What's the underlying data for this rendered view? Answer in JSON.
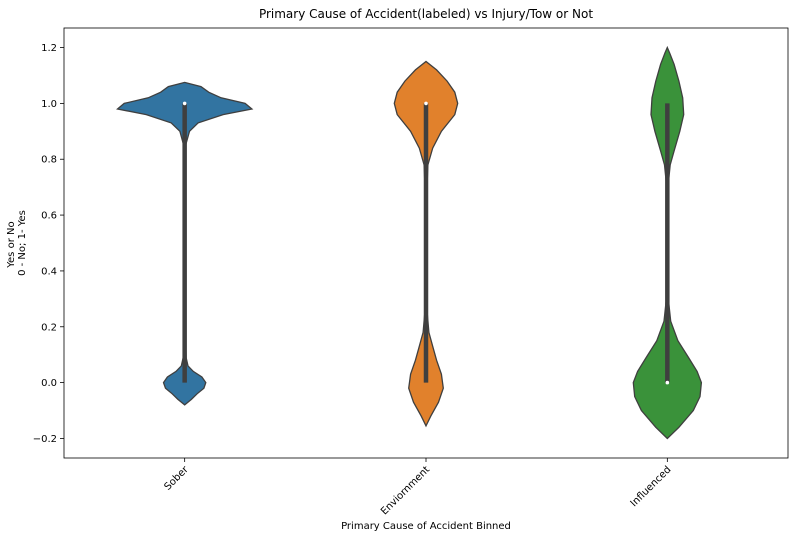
{
  "chart_data": {
    "type": "violin",
    "title": "Primary Cause of Accident(labeled) vs Injury/Tow or Not",
    "xlabel": "Primary Cause of Accident Binned",
    "ylabel_lines": [
      "Yes or No",
      "0 - No; 1- Yes"
    ],
    "ylim": [
      -0.27,
      1.27
    ],
    "yticks": [
      -0.2,
      0.0,
      0.2,
      0.4,
      0.6,
      0.8,
      1.0,
      1.2
    ],
    "ytick_labels": [
      "−0.2",
      "0.0",
      "0.2",
      "0.4",
      "0.6",
      "0.8",
      "1.0",
      "1.2"
    ],
    "categories": [
      "Sober",
      "Enviornment",
      "Influenced"
    ],
    "series": [
      {
        "category": "Sober",
        "color": "#3274a1",
        "range": [
          -0.08,
          1.075
        ],
        "whisker": [
          0.0,
          1.0
        ],
        "median": 1.0,
        "density": [
          [
            -0.08,
            0.0
          ],
          [
            -0.06,
            0.07
          ],
          [
            -0.04,
            0.13
          ],
          [
            -0.02,
            0.2
          ],
          [
            0.0,
            0.22
          ],
          [
            0.02,
            0.18
          ],
          [
            0.04,
            0.09
          ],
          [
            0.06,
            0.035
          ],
          [
            0.09,
            0.015
          ],
          [
            0.15,
            0.01
          ],
          [
            0.3,
            0.008
          ],
          [
            0.5,
            0.008
          ],
          [
            0.7,
            0.008
          ],
          [
            0.85,
            0.01
          ],
          [
            0.9,
            0.05
          ],
          [
            0.93,
            0.14
          ],
          [
            0.96,
            0.4
          ],
          [
            0.98,
            0.7
          ],
          [
            1.0,
            0.63
          ],
          [
            1.02,
            0.38
          ],
          [
            1.04,
            0.25
          ],
          [
            1.06,
            0.17
          ],
          [
            1.075,
            0.0
          ]
        ]
      },
      {
        "category": "Enviornment",
        "color": "#e1812c",
        "range": [
          -0.155,
          1.15
        ],
        "whisker": [
          0.0,
          1.0
        ],
        "median": 1.0,
        "density": [
          [
            -0.155,
            0.0
          ],
          [
            -0.12,
            0.05
          ],
          [
            -0.07,
            0.13
          ],
          [
            -0.02,
            0.18
          ],
          [
            0.03,
            0.16
          ],
          [
            0.08,
            0.11
          ],
          [
            0.13,
            0.07
          ],
          [
            0.18,
            0.03
          ],
          [
            0.25,
            0.012
          ],
          [
            0.4,
            0.008
          ],
          [
            0.55,
            0.008
          ],
          [
            0.7,
            0.01
          ],
          [
            0.78,
            0.02
          ],
          [
            0.84,
            0.07
          ],
          [
            0.9,
            0.16
          ],
          [
            0.96,
            0.3
          ],
          [
            1.0,
            0.33
          ],
          [
            1.04,
            0.3
          ],
          [
            1.08,
            0.22
          ],
          [
            1.12,
            0.11
          ],
          [
            1.15,
            0.0
          ]
        ]
      },
      {
        "category": "Influenced",
        "color": "#3a923a",
        "range": [
          -0.2,
          1.2
        ],
        "whisker": [
          0.0,
          1.0
        ],
        "median": 0.0,
        "density": [
          [
            -0.2,
            0.0
          ],
          [
            -0.16,
            0.12
          ],
          [
            -0.1,
            0.27
          ],
          [
            -0.05,
            0.34
          ],
          [
            0.0,
            0.355
          ],
          [
            0.04,
            0.31
          ],
          [
            0.09,
            0.22
          ],
          [
            0.15,
            0.11
          ],
          [
            0.22,
            0.035
          ],
          [
            0.3,
            0.01
          ],
          [
            0.45,
            0.008
          ],
          [
            0.6,
            0.008
          ],
          [
            0.72,
            0.012
          ],
          [
            0.78,
            0.03
          ],
          [
            0.83,
            0.07
          ],
          [
            0.9,
            0.13
          ],
          [
            0.96,
            0.17
          ],
          [
            1.02,
            0.16
          ],
          [
            1.08,
            0.12
          ],
          [
            1.14,
            0.07
          ],
          [
            1.18,
            0.025
          ],
          [
            1.2,
            0.0
          ]
        ]
      }
    ],
    "grid": false,
    "legend": "none"
  }
}
